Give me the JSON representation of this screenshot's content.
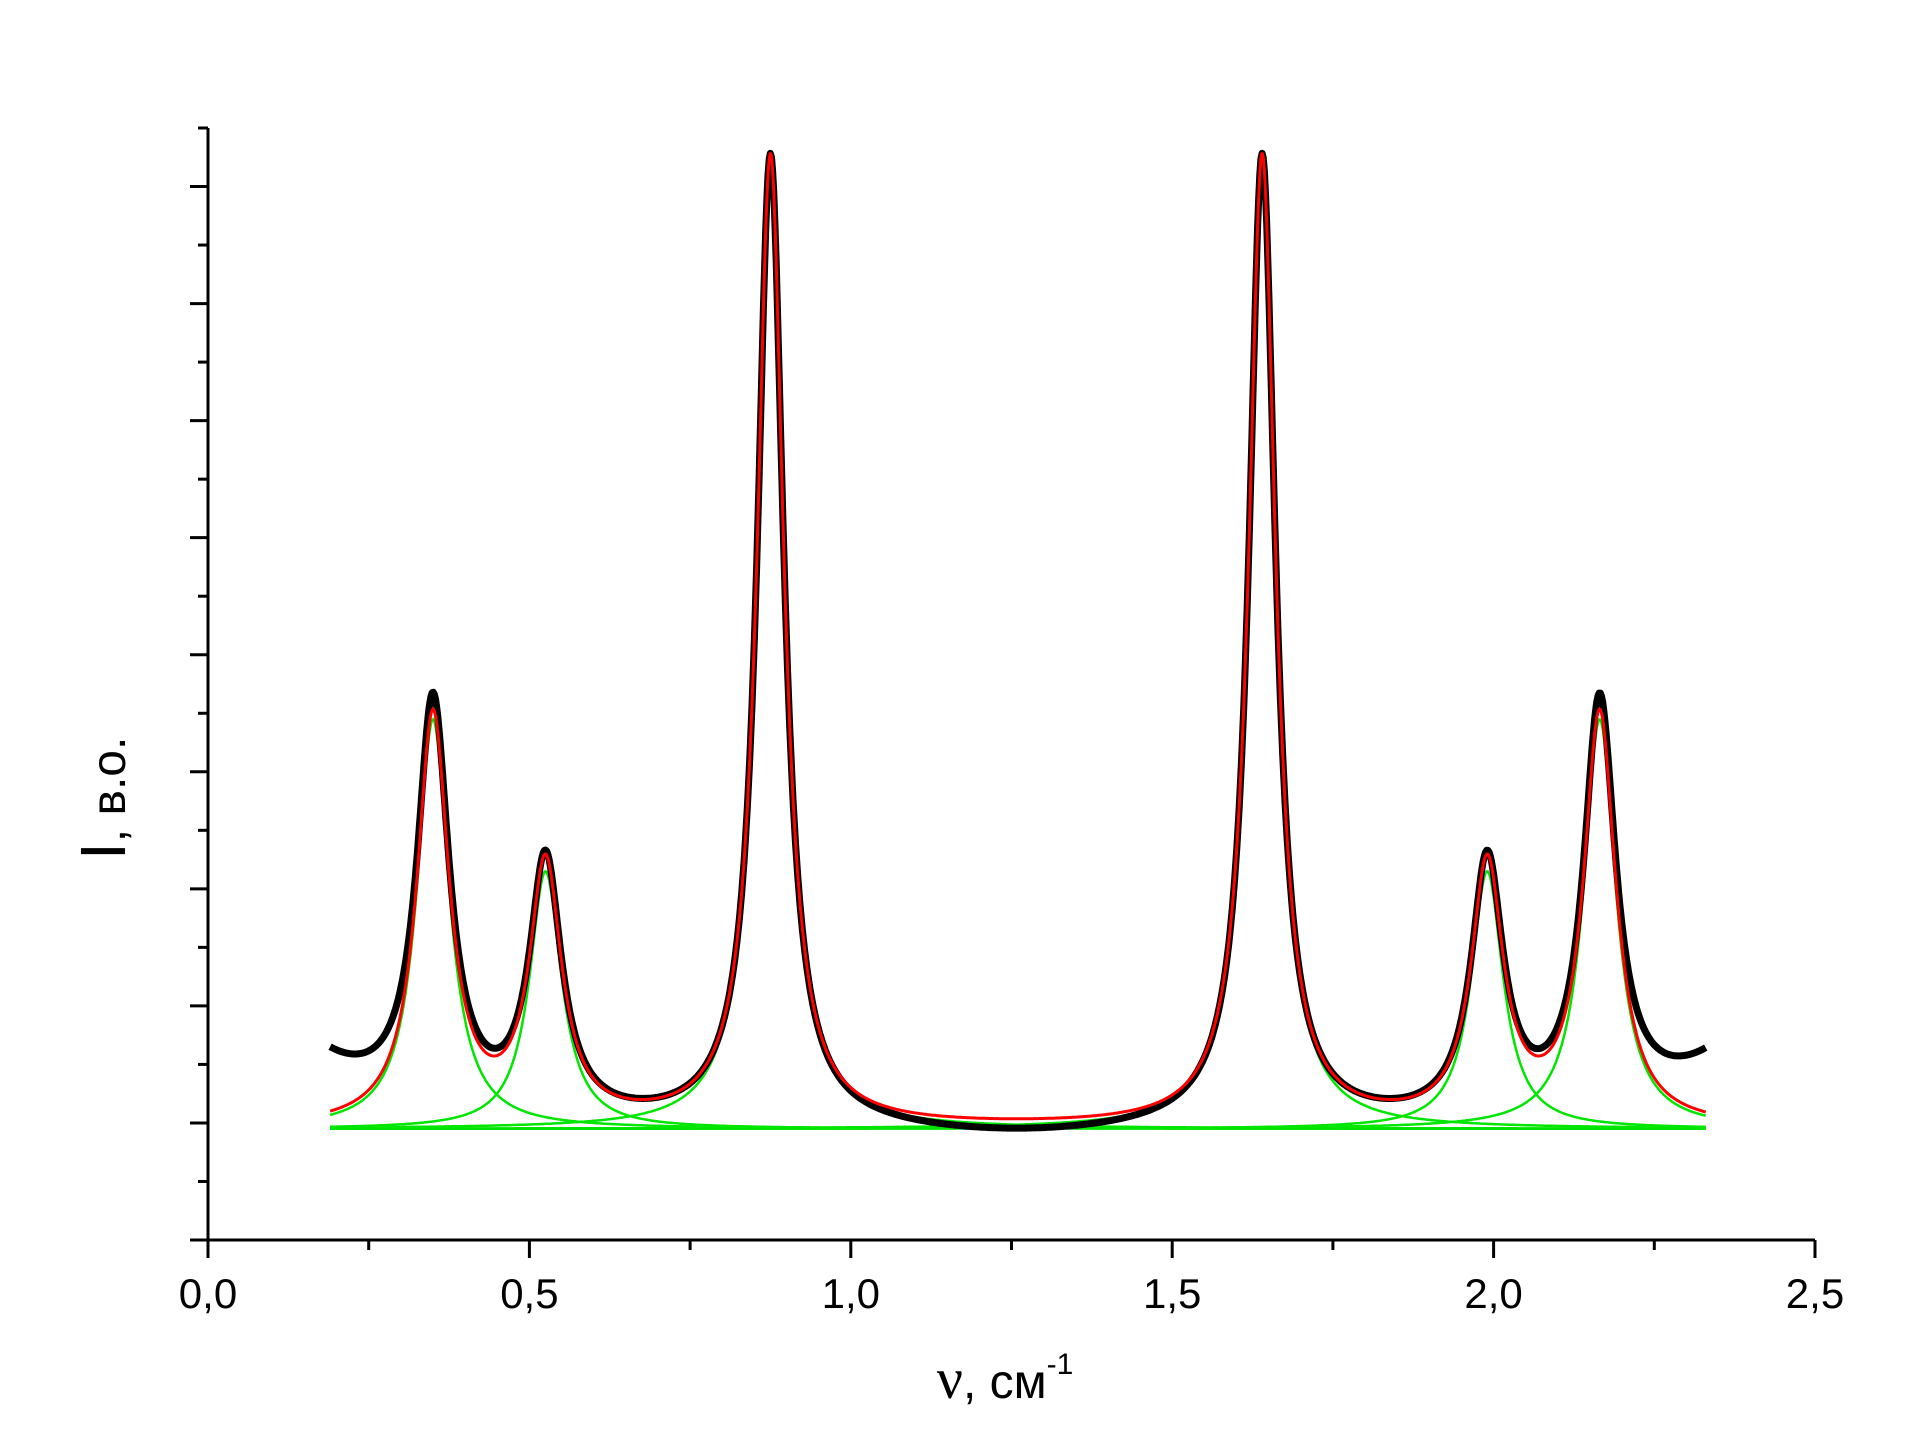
{
  "chart_data": {
    "type": "line",
    "xlabel_symbol": "ν",
    "xlabel_text": ", см",
    "xlabel_sup": "-1",
    "ylabel_main": "I",
    "ylabel_unit": ", в.о.",
    "xlim": [
      0.0,
      2.5
    ],
    "ylim": [
      0,
      9.5
    ],
    "x_ticks_major": [
      "0,0",
      "0,5",
      "1,0",
      "1,5",
      "2,0",
      "2,5"
    ],
    "grid": false,
    "legend": "none",
    "x_range": [
      0.19,
      2.33
    ],
    "baseline": 0.95,
    "colors": {
      "measured": "#000000",
      "fit": "#ff0000",
      "component": "#00e600"
    },
    "peaks": [
      {
        "center": 0.35,
        "height": 3.5,
        "width": 0.03
      },
      {
        "center": 0.525,
        "height": 2.2,
        "width": 0.03
      },
      {
        "center": 0.875,
        "height": 8.3,
        "width": 0.025
      },
      {
        "center": 1.64,
        "height": 8.3,
        "width": 0.025
      },
      {
        "center": 1.99,
        "height": 2.2,
        "width": 0.03
      },
      {
        "center": 2.165,
        "height": 3.5,
        "width": 0.03
      }
    ]
  }
}
